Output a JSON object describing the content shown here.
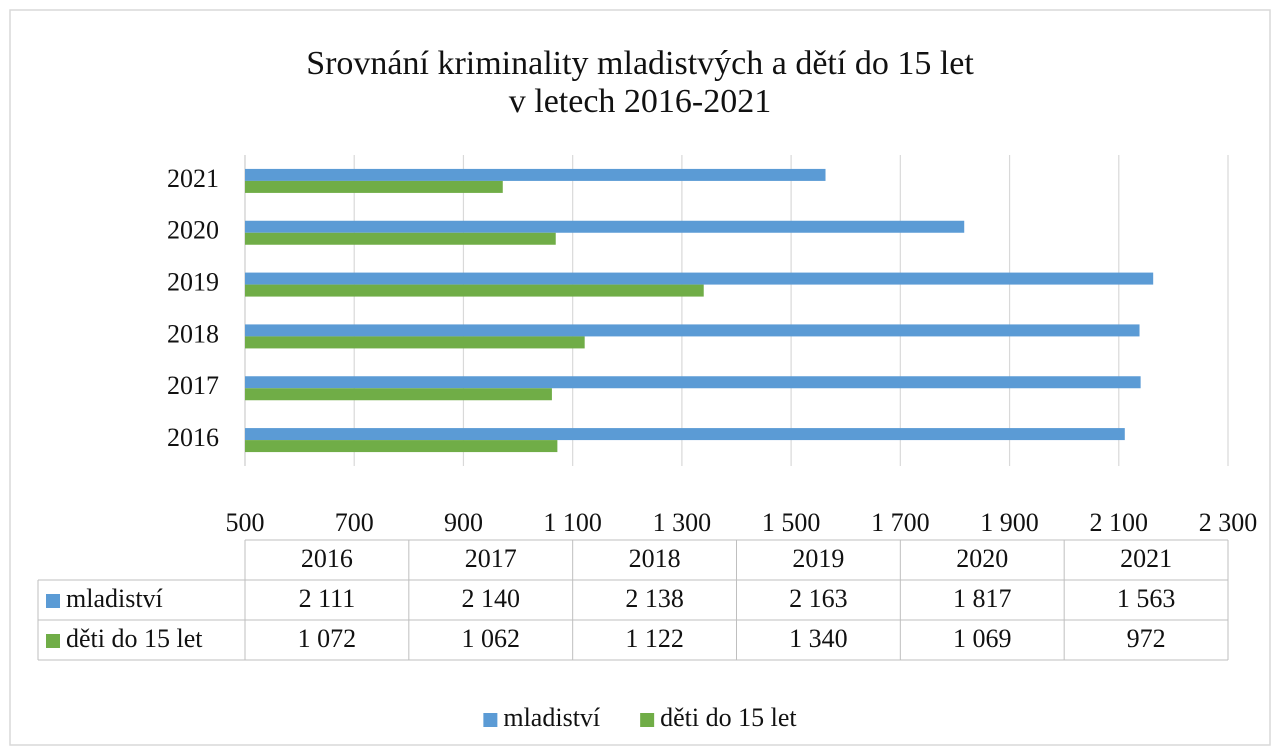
{
  "chart_data": {
    "type": "bar",
    "orientation": "horizontal",
    "title": [
      "Srovnání kriminality mladistvých a dětí do 15 let",
      "v letech 2016-2021"
    ],
    "categories": [
      "2016",
      "2017",
      "2018",
      "2019",
      "2020",
      "2021"
    ],
    "series": [
      {
        "name": "mladiství",
        "color": "#5b9bd5",
        "values": [
          2111,
          2140,
          2138,
          2163,
          1817,
          1563
        ],
        "value_labels": [
          "2 111",
          "2 140",
          "2 138",
          "2 163",
          "1 817",
          "1 563"
        ]
      },
      {
        "name": "děti do 15 let",
        "color": "#70ad47",
        "values": [
          1072,
          1062,
          1122,
          1340,
          1069,
          972
        ],
        "value_labels": [
          "1 072",
          "1 062",
          "1 122",
          "1 340",
          "1 069",
          "972"
        ]
      }
    ],
    "xlim": [
      500,
      2300
    ],
    "xticks": [
      500,
      700,
      900,
      {
        "value": 1100,
        "label": "1 100"
      },
      {
        "value": 1300,
        "label": "1 300"
      },
      {
        "value": 1500,
        "label": "1 500"
      },
      {
        "value": 1700,
        "label": "1 700"
      },
      {
        "value": 1900,
        "label": "1 900"
      },
      {
        "value": 2100,
        "label": "2 100"
      },
      {
        "value": 2300,
        "label": "2 300"
      }
    ],
    "grid": true,
    "legend": "bottom",
    "data_table": true
  }
}
